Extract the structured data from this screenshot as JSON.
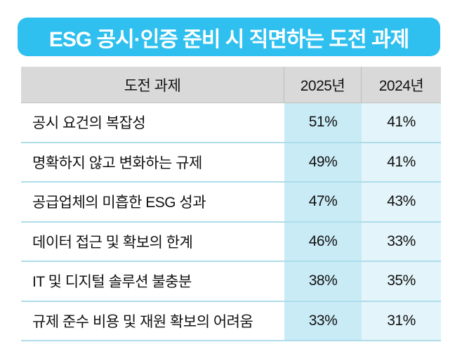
{
  "title": "ESG 공시·인증 준비 시 직면하는 도전 과제",
  "table": {
    "columns": [
      "도전 과제",
      "2025년",
      "2024년"
    ],
    "rows": [
      {
        "challenge": "공시 요건의 복잡성",
        "y2025": "51%",
        "y2024": "41%"
      },
      {
        "challenge": "명확하지 않고 변화하는 규제",
        "y2025": "49%",
        "y2024": "41%"
      },
      {
        "challenge": "공급업체의 미흡한 ESG 성과",
        "y2025": "47%",
        "y2024": "43%"
      },
      {
        "challenge": "데이터 접근 및 확보의 한계",
        "y2025": "46%",
        "y2024": "33%"
      },
      {
        "challenge": "IT 및 디지털 솔루션 불충분",
        "y2025": "38%",
        "y2024": "35%"
      },
      {
        "challenge": "규제 준수 비용 및 재원 확보의 어려움",
        "y2025": "33%",
        "y2024": "31%"
      }
    ]
  },
  "colors": {
    "banner_blue": "#2fc0ef",
    "header_gray": "#d9d9d9",
    "col_2025_bg": "#c9ebf6",
    "col_2024_bg": "#e3f4fa",
    "row_divider": "#aedcea",
    "text": "#111111",
    "banner_text": "#ffffff"
  },
  "chart_data": {
    "type": "table",
    "title": "ESG 공시·인증 준비 시 직면하는 도전 과제",
    "columns": [
      "도전 과제",
      "2025년",
      "2024년"
    ],
    "categories": [
      "공시 요건의 복잡성",
      "명확하지 않고 변화하는 규제",
      "공급업체의 미흡한 ESG 성과",
      "데이터 접근 및 확보의 한계",
      "IT 및 디지털 솔루션 불충분",
      "규제 준수 비용 및 재원 확보의 어려움"
    ],
    "series": [
      {
        "name": "2025년",
        "values": [
          51,
          49,
          47,
          46,
          38,
          33
        ],
        "unit": "%"
      },
      {
        "name": "2024년",
        "values": [
          41,
          41,
          43,
          33,
          35,
          31
        ],
        "unit": "%"
      }
    ]
  }
}
